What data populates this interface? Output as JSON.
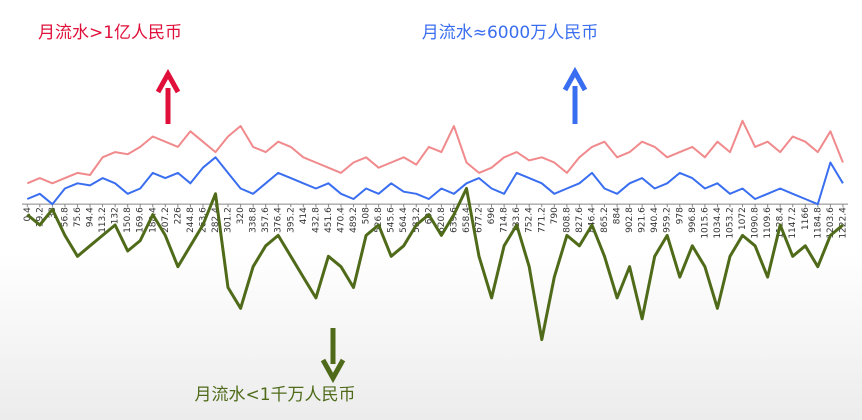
{
  "chart_data": {
    "type": "line",
    "x": [
      0.4,
      19.2,
      38,
      56.8,
      75.6,
      94.4,
      113.2,
      132,
      150.8,
      169.6,
      188.4,
      207.2,
      226,
      244.8,
      263.6,
      282.4,
      301.2,
      320,
      338.8,
      357.6,
      376.4,
      395.2,
      414,
      432.8,
      451.6,
      470.4,
      489.2,
      508,
      526.8,
      545.6,
      564.4,
      583.2,
      602,
      620.8,
      639.6,
      658.4,
      677.2,
      696,
      714.8,
      733.6,
      752.4,
      771.2,
      790,
      808.8,
      827.6,
      846.4,
      865.2,
      884,
      902.8,
      921.6,
      940.4,
      959.2,
      978,
      996.8,
      1015.6,
      1034.4,
      1053.2,
      1072,
      1090.8,
      1109.6,
      1128.4,
      1147.2,
      1166,
      1184.8,
      1203.6,
      1222.4
    ],
    "xticks": [
      0.4,
      19.2,
      38,
      56.8,
      75.6,
      94.4,
      113.2,
      132,
      150.8,
      169.6,
      188.4,
      207.2,
      226,
      244.8,
      263.6,
      282.4,
      301.2,
      320,
      338.8,
      357.6,
      376.4,
      395.2,
      414,
      432.8,
      451.6,
      470.4,
      489.2,
      508,
      526.8,
      545.6,
      564.4,
      583.2,
      602,
      620.8,
      639.6,
      658.4,
      677.2,
      696,
      714.8,
      733.6,
      752.4,
      771.2,
      790,
      808.8,
      827.6,
      846.4,
      865.2,
      884,
      902.8,
      921.6,
      940.4,
      959.2,
      978,
      996.8,
      1015.6,
      1034.4,
      1053.2,
      1072,
      1090.8,
      1109.6,
      1128.4,
      1147.2,
      1166,
      1184.8,
      1203.6,
      1222.4
    ],
    "xlim": [
      0,
      1230
    ],
    "ylim": [
      -1.4,
      1.0
    ],
    "series": [
      {
        "name": "月流水>1亿人民币",
        "color": "#f08a8c",
        "label_color": "#e0103a",
        "values": [
          0.2,
          0.25,
          0.2,
          0.25,
          0.3,
          0.28,
          0.45,
          0.5,
          0.48,
          0.55,
          0.65,
          0.6,
          0.55,
          0.7,
          0.6,
          0.5,
          0.65,
          0.75,
          0.55,
          0.5,
          0.6,
          0.55,
          0.45,
          0.4,
          0.35,
          0.3,
          0.4,
          0.45,
          0.35,
          0.4,
          0.45,
          0.38,
          0.55,
          0.5,
          0.75,
          0.4,
          0.3,
          0.35,
          0.45,
          0.5,
          0.42,
          0.45,
          0.4,
          0.3,
          0.45,
          0.55,
          0.6,
          0.45,
          0.5,
          0.6,
          0.55,
          0.45,
          0.5,
          0.55,
          0.45,
          0.6,
          0.5,
          0.8,
          0.55,
          0.6,
          0.5,
          0.65,
          0.6,
          0.5,
          0.7,
          0.4
        ]
      },
      {
        "name": "月流水≈6000万人民币",
        "color": "#3a6ef0",
        "label_color": "#3a6ef0",
        "values": [
          0.05,
          0.1,
          0.0,
          0.15,
          0.2,
          0.18,
          0.25,
          0.2,
          0.1,
          0.15,
          0.3,
          0.25,
          0.3,
          0.2,
          0.35,
          0.45,
          0.3,
          0.15,
          0.1,
          0.2,
          0.3,
          0.25,
          0.2,
          0.15,
          0.2,
          0.1,
          0.05,
          0.15,
          0.1,
          0.2,
          0.12,
          0.1,
          0.05,
          0.15,
          0.1,
          0.2,
          0.25,
          0.15,
          0.1,
          0.3,
          0.25,
          0.2,
          0.1,
          0.15,
          0.2,
          0.3,
          0.15,
          0.1,
          0.2,
          0.25,
          0.15,
          0.2,
          0.3,
          0.25,
          0.15,
          0.2,
          0.1,
          0.15,
          0.05,
          0.1,
          0.15,
          0.1,
          0.05,
          0.0,
          0.4,
          0.2
        ]
      },
      {
        "name": "月流水<1千万人民币",
        "color": "#4f6b1a",
        "label_color": "#4f6b1a",
        "values": [
          -0.1,
          -0.2,
          -0.05,
          -0.3,
          -0.5,
          -0.4,
          -0.3,
          -0.2,
          -0.45,
          -0.35,
          -0.1,
          -0.3,
          -0.6,
          -0.4,
          -0.2,
          0.1,
          -0.8,
          -1.0,
          -0.6,
          -0.4,
          -0.3,
          -0.5,
          -0.7,
          -0.9,
          -0.5,
          -0.6,
          -0.8,
          -0.3,
          -0.2,
          -0.5,
          -0.4,
          -0.2,
          -0.1,
          -0.3,
          -0.1,
          0.15,
          -0.5,
          -0.9,
          -0.4,
          -0.2,
          -0.6,
          -1.3,
          -0.7,
          -0.3,
          -0.4,
          -0.2,
          -0.5,
          -0.9,
          -0.6,
          -1.1,
          -0.5,
          -0.3,
          -0.7,
          -0.4,
          -0.6,
          -1.0,
          -0.5,
          -0.3,
          -0.4,
          -0.7,
          -0.2,
          -0.5,
          -0.4,
          -0.6,
          -0.3,
          -0.2
        ]
      }
    ]
  }
}
